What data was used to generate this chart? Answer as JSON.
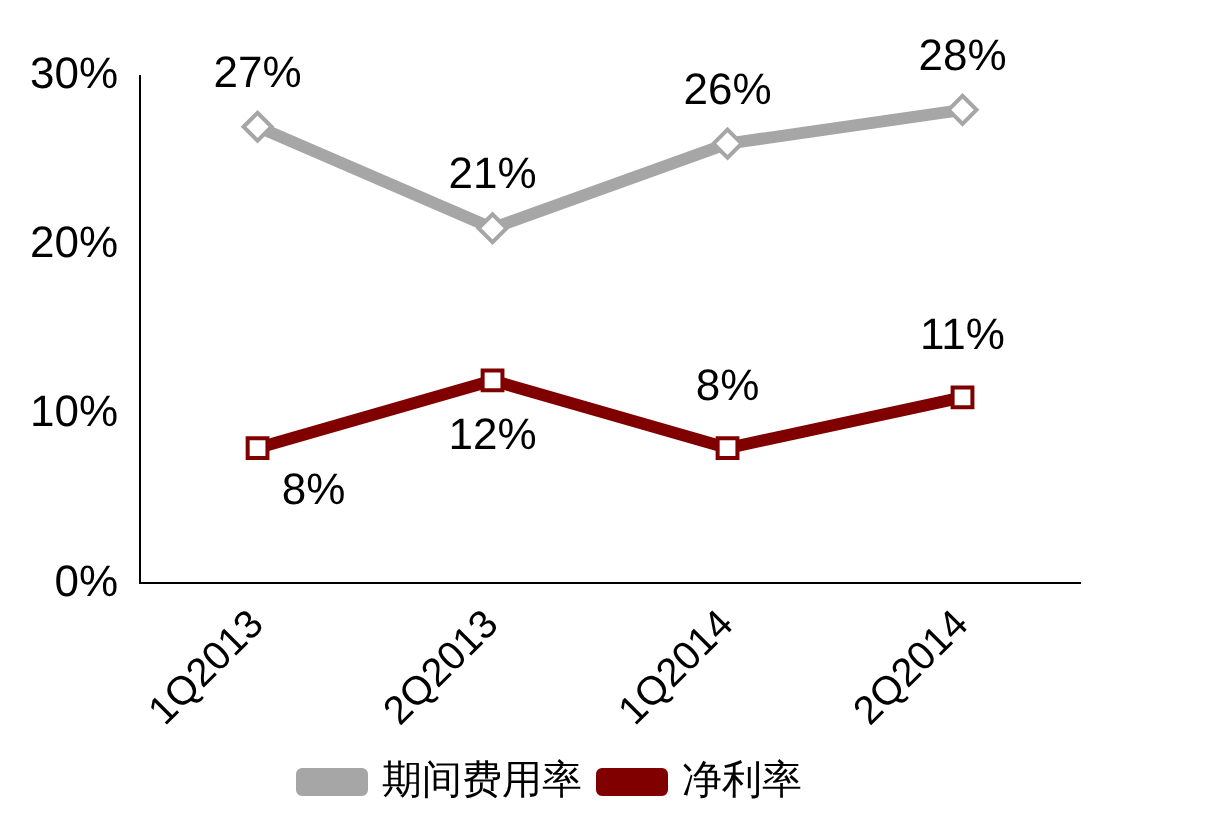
{
  "chart_data": {
    "type": "line",
    "categories": [
      "1Q2013",
      "2Q2013",
      "1Q2014",
      "2Q2014"
    ],
    "series": [
      {
        "name": "期间费用率",
        "color": "#a6a6a6",
        "values": [
          27,
          21,
          26,
          28
        ],
        "value_labels": [
          "27%",
          "21%",
          "26%",
          "28%"
        ],
        "marker": "diamond"
      },
      {
        "name": "净利率",
        "color": "#800000",
        "values": [
          8,
          12,
          8,
          11
        ],
        "value_labels": [
          "8%",
          "12%",
          "8%",
          "11%"
        ],
        "marker": "square"
      }
    ],
    "ylim": [
      0,
      30
    ],
    "yticks": [
      {
        "value": 0,
        "label": "0%"
      },
      {
        "value": 10,
        "label": "10%"
      },
      {
        "value": 20,
        "label": "20%"
      },
      {
        "value": 30,
        "label": "30%"
      }
    ],
    "grid": false,
    "legend": "bottom",
    "line_style": "solid"
  }
}
